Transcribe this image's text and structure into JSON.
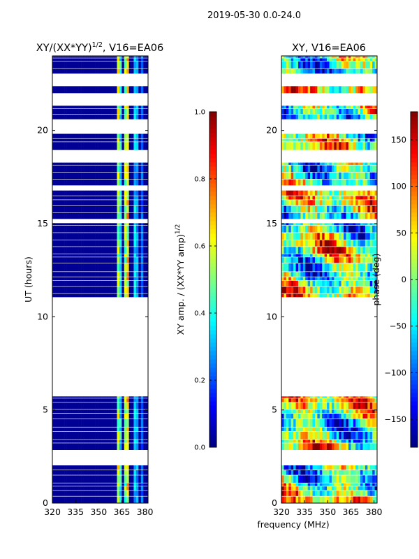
{
  "figure": {
    "suptitle": "2019-05-30 0.0-24.0",
    "xlabel": "frequency (MHz)"
  },
  "chart_data": [
    {
      "type": "heatmap",
      "title": "XY/(XX*YY)",
      "title_exponent": "1/2",
      "title_suffix": ", V16=EA06",
      "xlabel": "",
      "ylabel": "UT (hours)",
      "xlim": [
        320,
        382
      ],
      "ylim": [
        0,
        24
      ],
      "xticks": [
        320,
        335,
        350,
        365,
        380
      ],
      "yticks": [
        0,
        5,
        10,
        15,
        20
      ],
      "colorbar": {
        "label": "XY amp. / (XX*YY amp)",
        "label_exponent": "1/2",
        "range": [
          0.0,
          1.0
        ],
        "ticks": [
          "0.0",
          "0.2",
          "0.4",
          "0.6",
          "0.8",
          "1.0"
        ],
        "colormap": "jet"
      },
      "background_value": 0.02,
      "bright_channels": [
        {
          "from": 362,
          "to": 364,
          "value": 0.55
        },
        {
          "from": 364,
          "to": 365.5,
          "value": 0.38
        },
        {
          "from": 366,
          "to": 367.5,
          "value": 0.5
        },
        {
          "from": 367.5,
          "to": 369.5,
          "value": 0.62
        },
        {
          "from": 372,
          "to": 374,
          "value": 0.33
        },
        {
          "from": 375,
          "to": 376.5,
          "value": 0.28
        },
        {
          "from": 378,
          "to": 379.5,
          "value": 0.22
        }
      ]
    },
    {
      "type": "heatmap",
      "title": "XY, V16=EA06",
      "xlabel": "",
      "ylabel": "",
      "xlim": [
        320,
        382
      ],
      "ylim": [
        0,
        24
      ],
      "xticks": [
        320,
        335,
        350,
        365,
        380
      ],
      "yticks": [
        0,
        5,
        10,
        15,
        20
      ],
      "colorbar": {
        "label": "phase (deg)",
        "range": [
          -180,
          180
        ],
        "ticks": [
          "−150",
          "−100",
          "−50",
          "0",
          "50",
          "100",
          "150"
        ],
        "tick_values": [
          -150,
          -100,
          -50,
          0,
          50,
          100,
          150
        ],
        "colormap": "jet"
      }
    }
  ],
  "data_coverage_ut_hours": [
    [
      0.0,
      2.05
    ],
    [
      2.85,
      5.75
    ],
    [
      11.05,
      15.05
    ],
    [
      15.25,
      16.8
    ],
    [
      17.05,
      18.3
    ],
    [
      18.95,
      19.85
    ],
    [
      20.6,
      21.35
    ],
    [
      22.0,
      22.4
    ],
    [
      23.05,
      24.0
    ]
  ]
}
